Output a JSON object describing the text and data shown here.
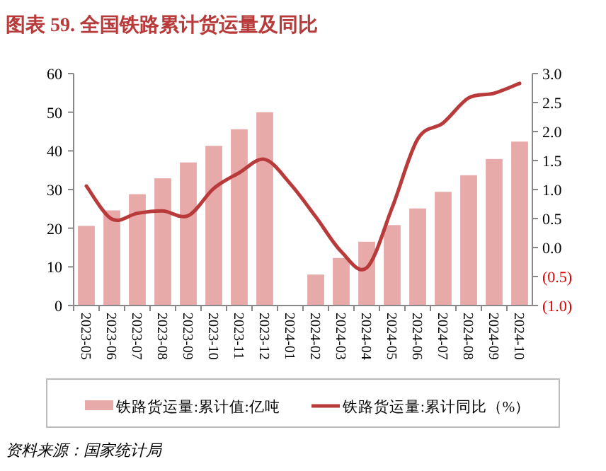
{
  "chart_data": {
    "type": "bar",
    "title": "图表 59. 全国铁路累计货运量及同比",
    "categories": [
      "2023-05",
      "2023-06",
      "2023-07",
      "2023-08",
      "2023-09",
      "2023-10",
      "2023-11",
      "2023-12",
      "2024-01",
      "2024-02",
      "2024-03",
      "2024-04",
      "2024-05",
      "2024-06",
      "2024-07",
      "2024-08",
      "2024-09",
      "2024-10"
    ],
    "series": [
      {
        "name": "铁路货运量:累计值:亿吨",
        "color": "#e8a9a9",
        "values": [
          20.6,
          24.6,
          28.8,
          32.9,
          37.0,
          41.3,
          45.6,
          50.0,
          null,
          8.0,
          12.3,
          16.5,
          20.8,
          25.1,
          29.4,
          33.7,
          37.9,
          42.4
        ]
      },
      {
        "name": "铁路货运量:累计同比（%）",
        "type": "line",
        "axis": "y2",
        "color": "#b83a3a",
        "values": [
          1.06,
          0.49,
          0.59,
          0.63,
          0.55,
          1.02,
          1.29,
          1.52,
          1.1,
          0.53,
          -0.07,
          -0.35,
          0.69,
          1.87,
          2.15,
          2.58,
          2.66,
          2.83
        ]
      }
    ],
    "ylim": [
      0,
      60
    ],
    "yticks": [
      0,
      10,
      20,
      30,
      40,
      50,
      60
    ],
    "y2lim": [
      -1,
      3
    ],
    "y2ticks": [
      {
        "value": -1,
        "label": "(1.0)"
      },
      {
        "value": -0.5,
        "label": "(0.5)"
      },
      {
        "value": 0,
        "label": "0.0"
      },
      {
        "value": 0.5,
        "label": "0.5"
      },
      {
        "value": 1,
        "label": "1.0"
      },
      {
        "value": 1.5,
        "label": "1.5"
      },
      {
        "value": 2,
        "label": "2.0"
      },
      {
        "value": 2.5,
        "label": "2.5"
      },
      {
        "value": 3,
        "label": "3.0"
      }
    ],
    "grid": false,
    "legend": "bottom",
    "annotations": [
      "资料来源：国家统计局"
    ]
  }
}
